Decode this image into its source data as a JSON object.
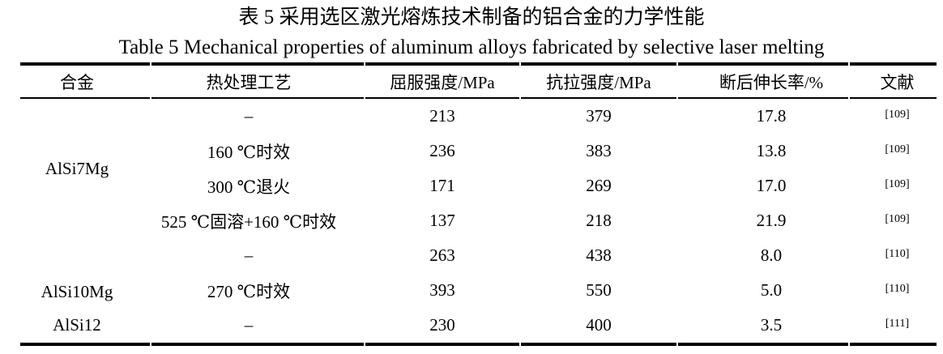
{
  "titles": {
    "zh": "表 5  采用选区激光熔炼技术制备的铝合金的力学性能",
    "en": "Table 5 Mechanical properties of aluminum alloys fabricated by selective laser melting"
  },
  "table": {
    "columns": [
      "合金",
      "热处理工艺",
      "屈服强度/MPa",
      "抗拉强度/MPa",
      "断后伸长率/%",
      "文献"
    ],
    "groups": [
      {
        "alloy": "AlSi7Mg",
        "rows": [
          [
            "–",
            "213",
            "379",
            "17.8",
            "[109]"
          ],
          [
            "160 ℃时效",
            "236",
            "383",
            "13.8",
            "[109]"
          ],
          [
            "300 ℃退火",
            "171",
            "269",
            "17.0",
            "[109]"
          ],
          [
            "525 ℃固溶+160 ℃时效",
            "137",
            "218",
            "21.9",
            "[109]"
          ]
        ]
      },
      {
        "alloy": "AlSi10Mg",
        "rows": [
          [
            "–",
            "263",
            "438",
            "8.0",
            "[110]"
          ],
          [
            "270 ℃时效",
            "393",
            "550",
            "5.0",
            "[110]"
          ]
        ]
      },
      {
        "alloy": "AlSi12",
        "rows": [
          [
            "–",
            "230",
            "400",
            "3.5",
            "[111]"
          ]
        ]
      }
    ]
  },
  "colors": {
    "text": "#000000",
    "background": "#ffffff",
    "rule": "#000000"
  }
}
